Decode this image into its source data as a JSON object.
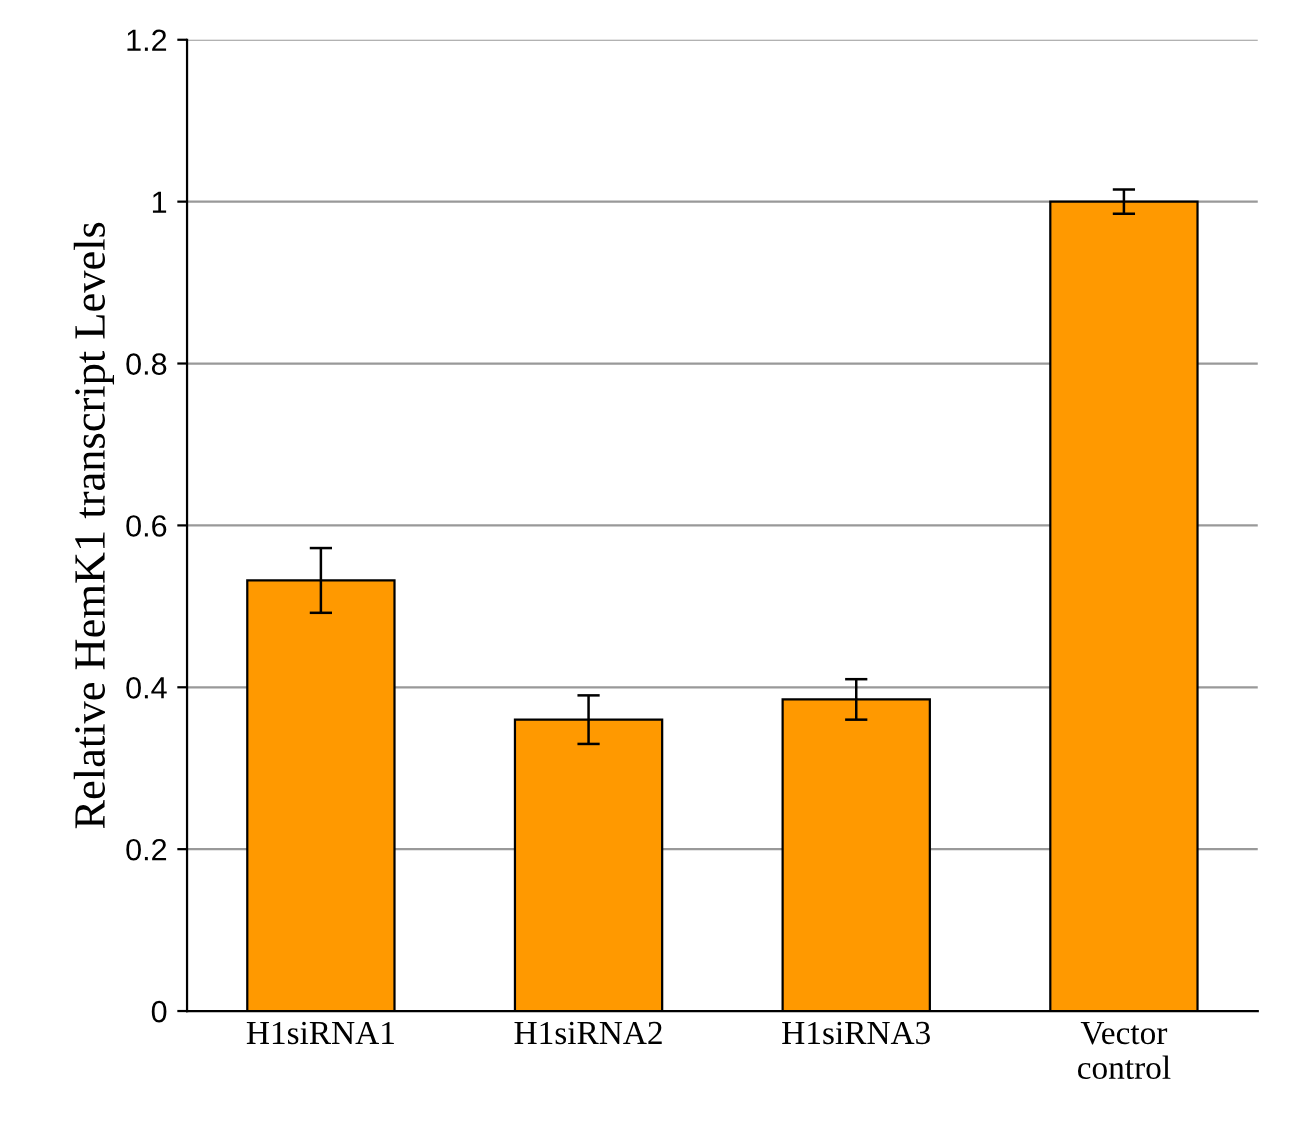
{
  "chart_data": {
    "type": "bar",
    "ylabel": "Relative HemK1 transcript Levels",
    "categories": [
      "H1siRNA1",
      "H1siRNA2",
      "H1siRNA3",
      "Vector\ncontrol"
    ],
    "values": [
      0.532,
      0.36,
      0.385,
      1.0
    ],
    "errors": [
      0.04,
      0.03,
      0.025,
      0.015
    ],
    "color": "#ff9900",
    "ylim": [
      0,
      1.2
    ],
    "yticks": [
      0,
      0.2,
      0.4,
      0.6,
      0.8,
      {
        "value": 1,
        "label": "1"
      },
      1.2
    ],
    "grid": "y"
  }
}
